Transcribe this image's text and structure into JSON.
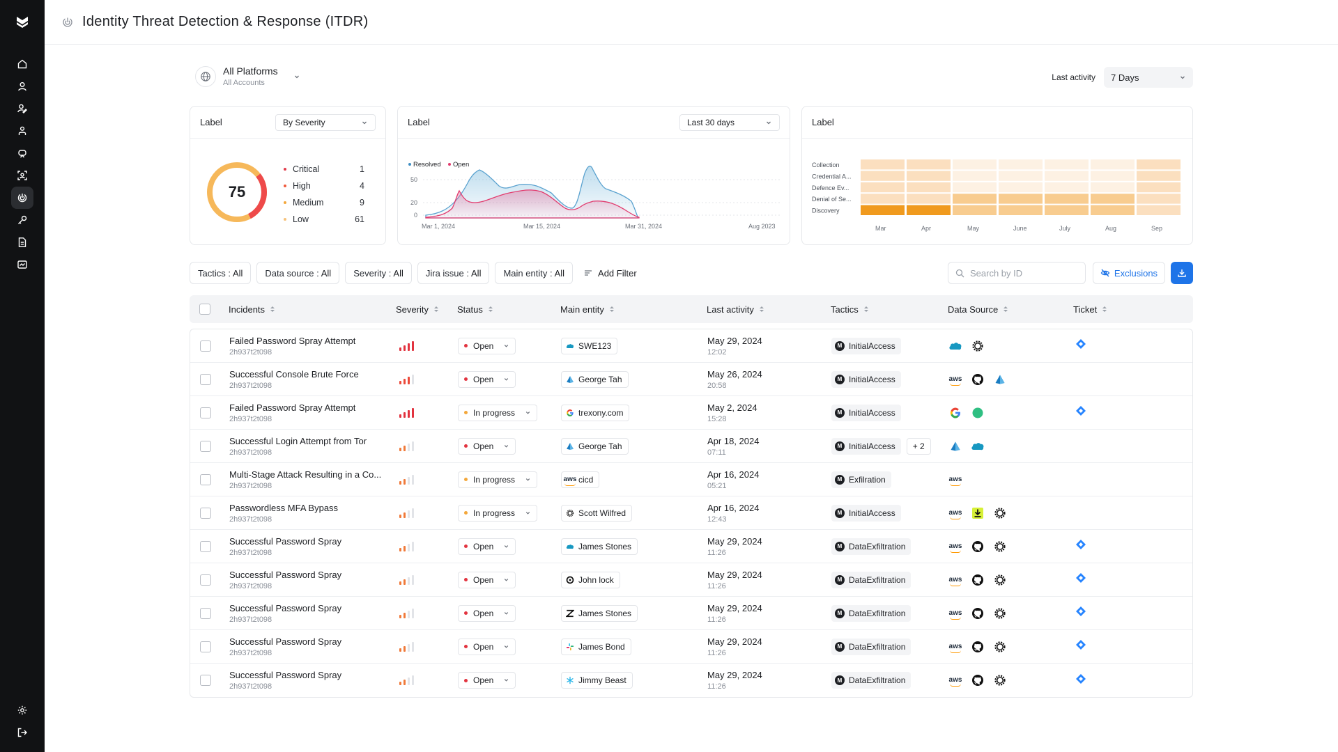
{
  "header": {
    "title": "Identity Threat Detection & Response (ITDR)"
  },
  "platform": {
    "name": "All Platforms",
    "accounts": "All Accounts"
  },
  "last_activity": {
    "label": "Last activity",
    "value": "7 Days"
  },
  "severity_card": {
    "label": "Label",
    "dropdown": "By Severity",
    "total": "75",
    "items": [
      {
        "name": "Critical",
        "count": "1",
        "color": "#e23b4b"
      },
      {
        "name": "High",
        "count": "4",
        "color": "#f05a3c"
      },
      {
        "name": "Medium",
        "count": "9",
        "color": "#f3a73b"
      },
      {
        "name": "Low",
        "count": "61",
        "color": "#f6c27a"
      }
    ]
  },
  "trend_card": {
    "label": "Label",
    "dropdown": "Last 30 days",
    "chart_data": {
      "type": "area",
      "legend": [
        "Resolved",
        "Open"
      ],
      "yticks": [
        "50",
        "20",
        "0"
      ],
      "xticks": [
        "Mar 1, 2024",
        "Mar 15, 2024",
        "Mar 31, 2024",
        "Aug 2023"
      ]
    }
  },
  "heatmap_card": {
    "label": "Label",
    "chart_data": {
      "type": "heatmap",
      "rows": [
        "Collection",
        "Credential A...",
        "Defence Ev...",
        "Denial of Se...",
        "Discovery"
      ],
      "cols": [
        "Mar",
        "Apr",
        "May",
        "June",
        "July",
        "Aug",
        "Sep"
      ],
      "levels": [
        [
          2,
          2,
          1,
          1,
          1,
          1,
          2
        ],
        [
          2,
          2,
          1,
          1,
          1,
          1,
          2
        ],
        [
          2,
          2,
          1,
          1,
          1,
          1,
          2
        ],
        [
          2,
          2,
          3,
          3,
          3,
          3,
          2
        ],
        [
          4,
          4,
          3,
          3,
          3,
          3,
          2
        ]
      ]
    }
  },
  "filters": [
    {
      "name": "Tactics",
      "value": "All"
    },
    {
      "name": "Data source",
      "value": "All"
    },
    {
      "name": "Severity",
      "value": "All"
    },
    {
      "name": "Jira issue",
      "value": "All"
    },
    {
      "name": "Main entity",
      "value": "All"
    }
  ],
  "add_filter": "Add Filter",
  "search": {
    "placeholder": "Search by ID"
  },
  "exclusions": "Exclusions",
  "columns": [
    "Incidents",
    "Severity",
    "Status",
    "Main entity",
    "Last activity",
    "Tactics",
    "Data Source",
    "Ticket"
  ],
  "rows": [
    {
      "title": "Failed Password Spray Attempt",
      "id": "2h937t2t098",
      "severity": 4,
      "status": "Open",
      "entity": "SWE123",
      "entity_icon": "salesforce-icon",
      "date": "May 29, 2024",
      "time": "12:02",
      "tactic": "InitialAccess",
      "more": "",
      "sources": [
        "salesforce-icon",
        "openai-icon"
      ],
      "ticket": true
    },
    {
      "title": "Successful Console Brute Force",
      "id": "2h937t2t098",
      "severity": 3,
      "status": "Open",
      "entity": "George Tah",
      "entity_icon": "azure-icon",
      "date": "May 26, 2024",
      "time": "20:58",
      "tactic": "InitialAccess",
      "more": "",
      "sources": [
        "aws-icon",
        "github-icon",
        "azure-icon"
      ],
      "ticket": false
    },
    {
      "title": "Failed Password Spray Attempt",
      "id": "2h937t2t098",
      "severity": 4,
      "status": "In progress",
      "entity": "trexony.com",
      "entity_icon": "google-icon",
      "date": "May 2, 2024",
      "time": "15:28",
      "tactic": "InitialAccess",
      "more": "",
      "sources": [
        "google-icon",
        "green-circle-icon"
      ],
      "ticket": true
    },
    {
      "title": "Successful Login Attempt from Tor",
      "id": "2h937t2t098",
      "severity": 2,
      "status": "Open",
      "entity": "George Tah",
      "entity_icon": "azure-icon",
      "date": "Apr 18, 2024",
      "time": "07:11",
      "tactic": "InitialAccess",
      "more": "+ 2",
      "sources": [
        "azure-icon",
        "salesforce-icon"
      ],
      "ticket": false
    },
    {
      "title": "Multi-Stage Attack Resulting in a Co...",
      "id": "2h937t2t098",
      "severity": 1,
      "status": "In progress",
      "entity": "cicd",
      "entity_icon": "aws-icon",
      "date": "Apr 16, 2024",
      "time": "05:21",
      "tactic": "Exfilration",
      "more": "",
      "sources": [
        "aws-icon"
      ],
      "ticket": false
    },
    {
      "title": "Passwordless MFA Bypass",
      "id": "2h937t2t098",
      "severity": 1,
      "status": "In progress",
      "entity": "Scott Wilfred",
      "entity_icon": "openai-icon",
      "date": "Apr 16, 2024",
      "time": "12:43",
      "tactic": "InitialAccess",
      "more": "",
      "sources": [
        "aws-icon",
        "download-icon",
        "openai-icon"
      ],
      "ticket": false
    },
    {
      "title": "Successful Password Spray",
      "id": "2h937t2t098",
      "severity": 1,
      "status": "Open",
      "entity": "James Stones",
      "entity_icon": "salesforce-icon",
      "date": "May 29, 2024",
      "time": "11:26",
      "tactic": "DataExfiltration",
      "more": "",
      "sources": [
        "aws-icon",
        "github-icon",
        "openai-icon"
      ],
      "ticket": true
    },
    {
      "title": "Successful Password Spray",
      "id": "2h937t2t098",
      "severity": 1,
      "status": "Open",
      "entity": "John lock",
      "entity_icon": "okta-icon",
      "date": "May 29, 2024",
      "time": "11:26",
      "tactic": "DataExfiltration",
      "more": "",
      "sources": [
        "aws-icon",
        "github-icon",
        "openai-icon"
      ],
      "ticket": true
    },
    {
      "title": "Successful Password Spray",
      "id": "2h937t2t098",
      "severity": 1,
      "status": "Open",
      "entity": "James Stones",
      "entity_icon": "zendesk-icon",
      "date": "May 29, 2024",
      "time": "11:26",
      "tactic": "DataExfiltration",
      "more": "",
      "sources": [
        "aws-icon",
        "github-icon",
        "openai-icon"
      ],
      "ticket": true
    },
    {
      "title": "Successful Password Spray",
      "id": "2h937t2t098",
      "severity": 1,
      "status": "Open",
      "entity": "James Bond",
      "entity_icon": "slack-icon",
      "date": "May 29, 2024",
      "time": "11:26",
      "tactic": "DataExfiltration",
      "more": "",
      "sources": [
        "aws-icon",
        "github-icon",
        "openai-icon"
      ],
      "ticket": true
    },
    {
      "title": "Successful Password Spray",
      "id": "2h937t2t098",
      "severity": 1,
      "status": "Open",
      "entity": "Jimmy Beast",
      "entity_icon": "snowflake-icon",
      "date": "May 29, 2024",
      "time": "11:26",
      "tactic": "DataExfiltration",
      "more": "",
      "sources": [
        "aws-icon",
        "github-icon",
        "openai-icon"
      ],
      "ticket": true
    }
  ]
}
